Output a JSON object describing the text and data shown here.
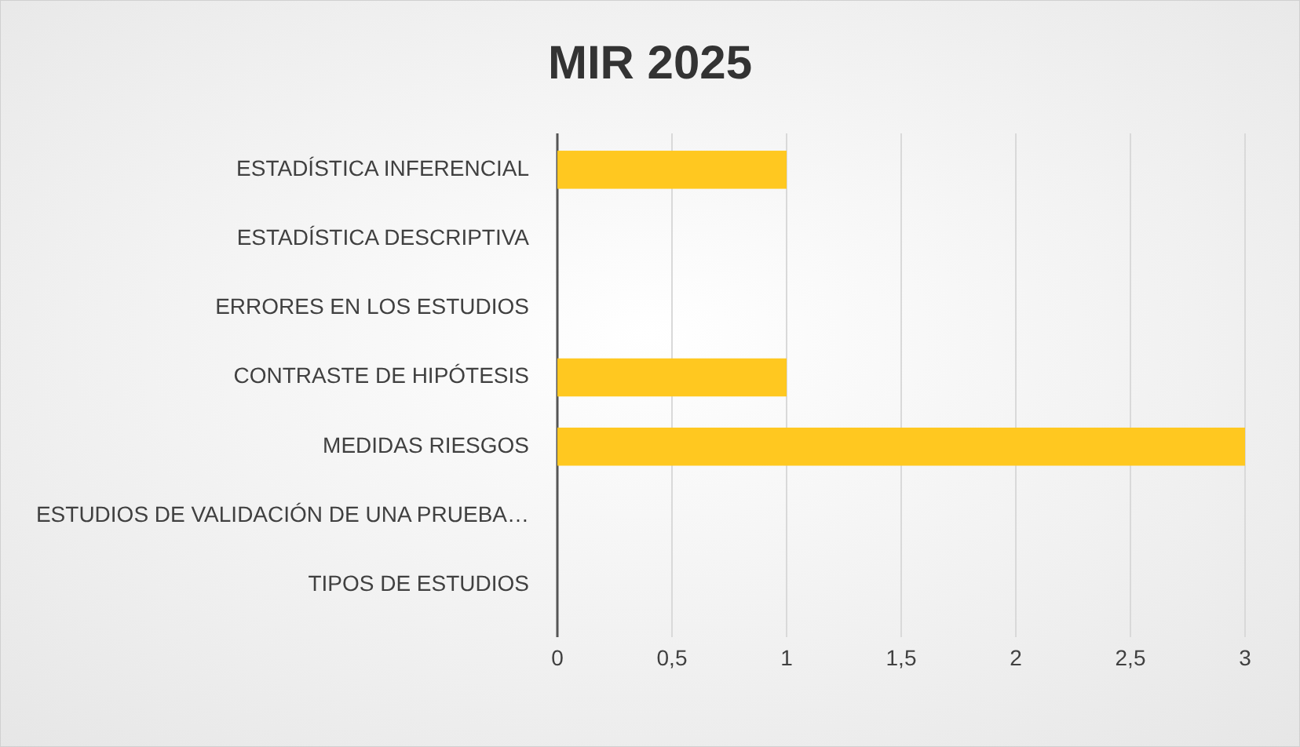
{
  "chart_data": {
    "type": "bar",
    "orientation": "horizontal",
    "title": "MIR 2025",
    "categories": [
      "ESTADÍSTICA INFERENCIAL",
      "ESTADÍSTICA DESCRIPTIVA",
      "ERRORES EN LOS ESTUDIOS",
      "CONTRASTE DE HIPÓTESIS",
      "MEDIDAS RIESGOS",
      "ESTUDIOS DE VALIDACIÓN DE UNA PRUEBA…",
      "TIPOS DE ESTUDIOS"
    ],
    "values": [
      1,
      0,
      0,
      1,
      3,
      0,
      0
    ],
    "color": "#ffc820",
    "xlim": [
      0,
      3
    ],
    "xticks": [
      0,
      {
        "value": 0.5,
        "label": "0,5"
      },
      1,
      {
        "value": 1.5,
        "label": "1,5"
      },
      2,
      {
        "value": 2.5,
        "label": "2,5"
      },
      3
    ],
    "grid": "x"
  }
}
